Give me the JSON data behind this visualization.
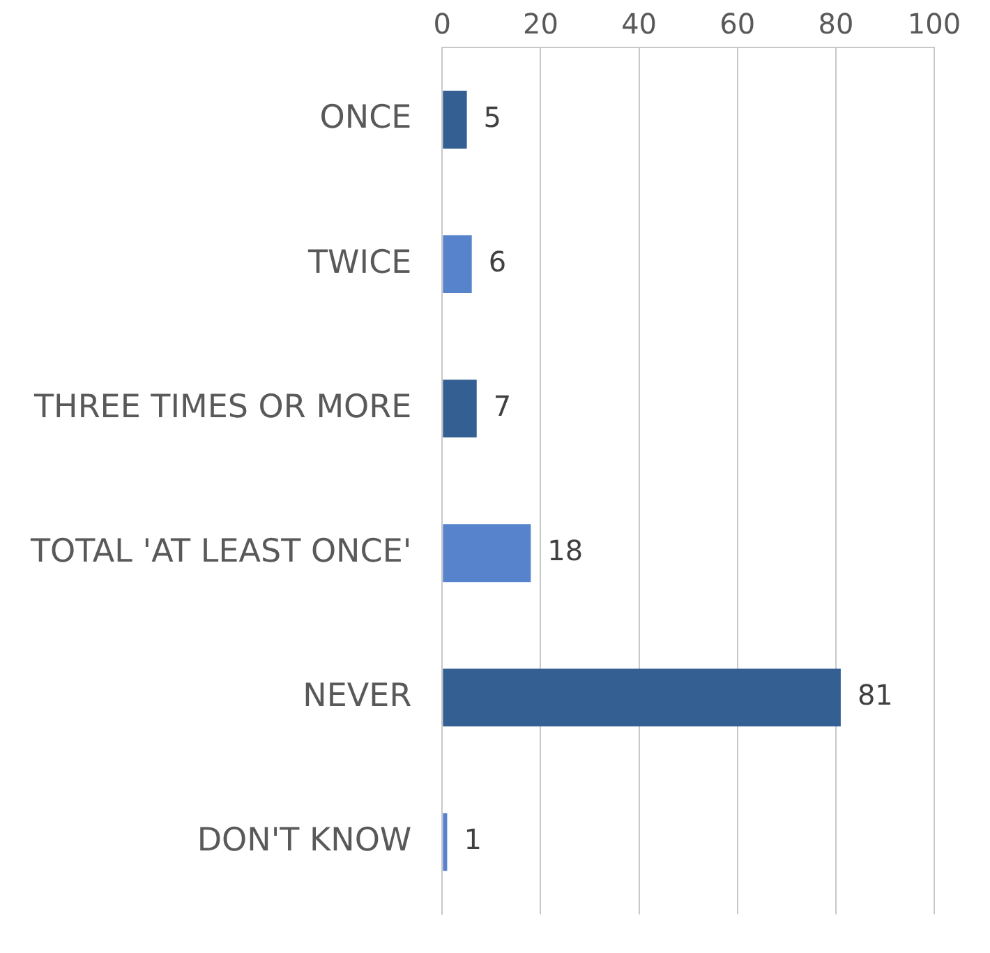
{
  "chart_data": {
    "type": "bar",
    "orientation": "horizontal",
    "categories": [
      "ONCE",
      "TWICE",
      "THREE TIMES OR MORE",
      "TOTAL 'AT LEAST ONCE'",
      "NEVER",
      "DON'T KNOW"
    ],
    "values": [
      5,
      6,
      7,
      18,
      81,
      1
    ],
    "colors": [
      "#335f92",
      "#5683cc",
      "#335f92",
      "#5683cc",
      "#335f92",
      "#5683cc"
    ],
    "xlim": [
      0,
      100
    ],
    "xticks": [
      0,
      20,
      40,
      60,
      80,
      100
    ],
    "grid": "x",
    "data_labels": true
  }
}
